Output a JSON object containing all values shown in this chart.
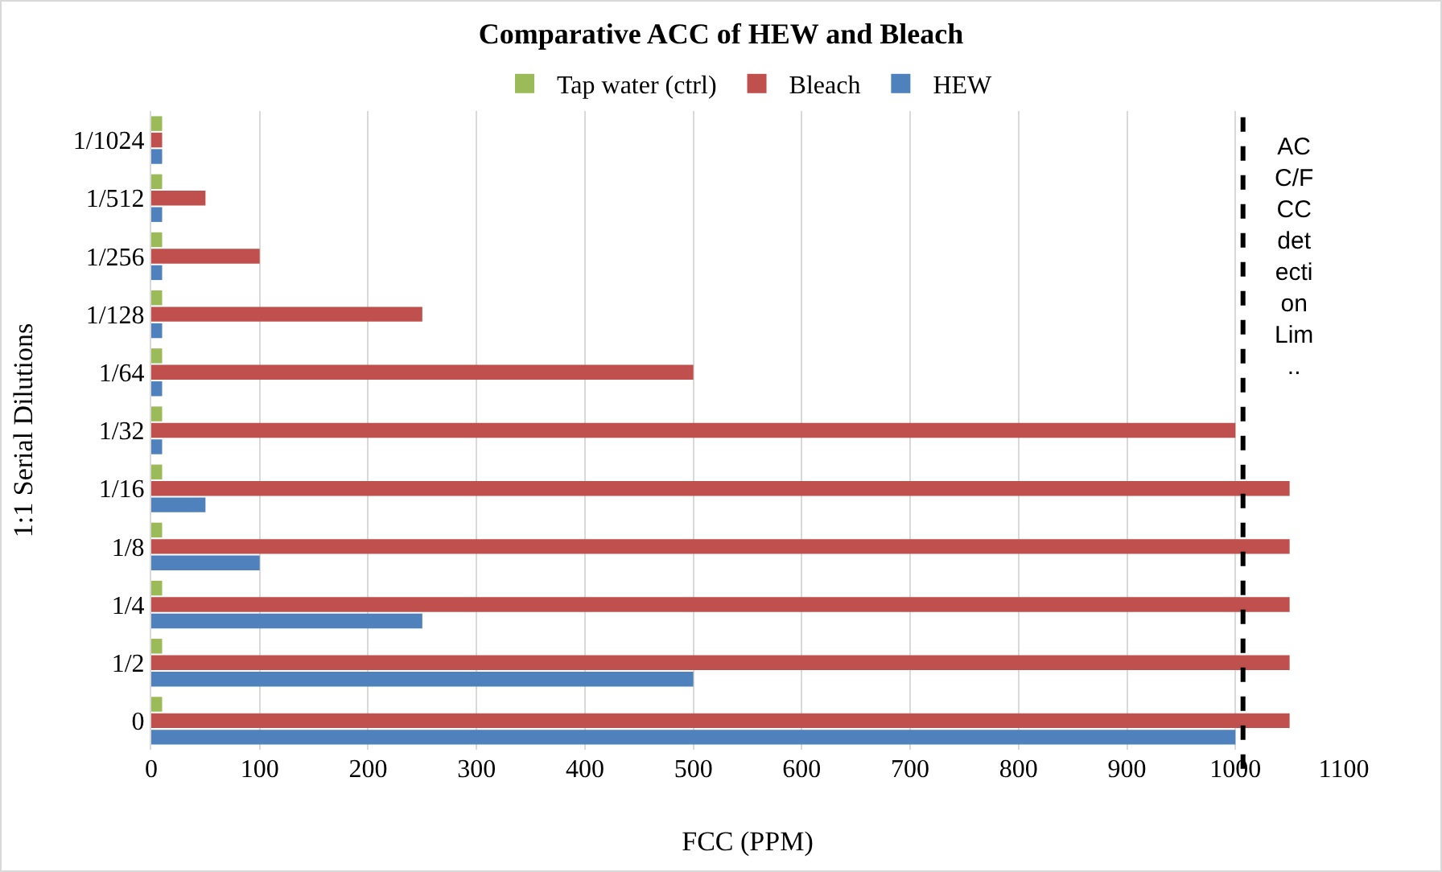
{
  "chart_data": {
    "type": "bar",
    "orientation": "horizontal",
    "title": "Comparative ACC of HEW and Bleach",
    "xlabel": "FCC (PPM)",
    "ylabel": "1:1 Serial Dilutions",
    "categories": [
      "1/1024",
      "1/512",
      "1/256",
      "1/128",
      "1/64",
      "1/32",
      "1/16",
      "1/8",
      "1/4",
      "1/2",
      "0"
    ],
    "series": [
      {
        "name": "Tap water (ctrl)",
        "color": "#9bbb59",
        "values": [
          10,
          10,
          10,
          10,
          10,
          10,
          10,
          10,
          10,
          10,
          10
        ]
      },
      {
        "name": "Bleach",
        "color": "#c0504d",
        "values": [
          10,
          50,
          100,
          250,
          500,
          1000,
          1050,
          1050,
          1050,
          1050,
          1050
        ]
      },
      {
        "name": "HEW",
        "color": "#4f81bd",
        "values": [
          10,
          10,
          10,
          10,
          10,
          10,
          50,
          100,
          250,
          500,
          1000
        ]
      }
    ],
    "xlim": [
      0,
      1100
    ],
    "xticks": [
      0,
      100,
      200,
      300,
      400,
      500,
      600,
      700,
      800,
      900,
      1000,
      1100
    ],
    "grid": "x",
    "legend": "top",
    "ref_lines": [
      {
        "axis": "x",
        "value": 1007,
        "label": "AC\nC/F\nCC\ndet\necti\non\nLim\n..",
        "color": "#000000",
        "line_style": "dashed"
      }
    ]
  }
}
